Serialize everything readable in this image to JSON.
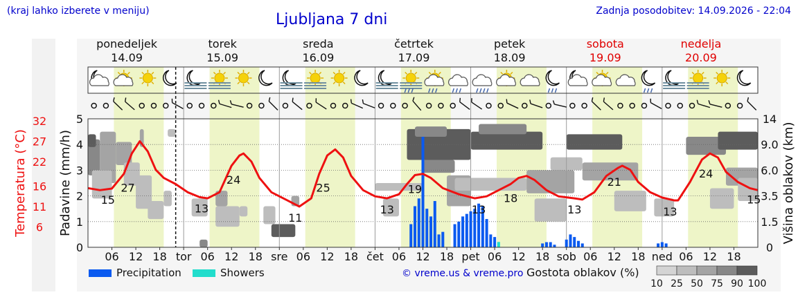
{
  "header": {
    "left_note": "(kraj lahko izberete v meniju)",
    "title": "Ljubljana 7 dni",
    "updated": "Zadnja posodobitev: 14.09.2026 - 22:04"
  },
  "days": [
    {
      "name": "ponedeljek",
      "date": "14.09",
      "weekend": false
    },
    {
      "name": "torek",
      "date": "15.09",
      "weekend": false
    },
    {
      "name": "sreda",
      "date": "16.09",
      "weekend": false
    },
    {
      "name": "četrtek",
      "date": "17.09",
      "weekend": false
    },
    {
      "name": "petek",
      "date": "18.09",
      "weekend": false
    },
    {
      "name": "sobota",
      "date": "19.09",
      "weekend": true
    },
    {
      "name": "nedelja",
      "date": "20.09",
      "weekend": true
    }
  ],
  "colors": {
    "temperature": "#ee1111",
    "precipitation": "#0a5af0",
    "showers": "#22ddcc",
    "daylight": "#eef5c8",
    "weekend": "#e00000",
    "link": "#0000cc",
    "cloud_levels": [
      "#d4d4d4",
      "#bdbdbd",
      "#a4a4a4",
      "#888888",
      "#5c5c5c"
    ]
  },
  "legend": {
    "precipitation": "Precipitation",
    "showers": "Showers",
    "copyright": "© vreme.us & vreme.pro",
    "cloud_density": "Gostota oblakov (%)",
    "cloud_density_ticks": [
      "10",
      "25",
      "50",
      "75",
      "90",
      "100"
    ]
  },
  "icons": [
    "moon-cloud",
    "sun-cloud",
    "sun",
    "moon",
    "moon-fog",
    "sun-fog",
    "sun",
    "moon",
    "moon-fog",
    "sun-fog",
    "sun",
    "moon",
    "moon-fog",
    "sun-fog-rain",
    "sun-cloud-rain",
    "rain",
    "rain-heavy",
    "sun-cloud",
    "cloud",
    "moon-rain",
    "moon-cloud",
    "sun-cloud",
    "cloud",
    "moon-rain",
    "moon-fog",
    "sun-fog",
    "sun",
    "moon"
  ],
  "chart_data": {
    "type": "line",
    "x_unit": "hours from 00:00 14.09",
    "x_range": [
      0,
      168
    ],
    "now_hour": 22,
    "x_ticks": [
      {
        "h": 6,
        "label": "06"
      },
      {
        "h": 12,
        "label": "12"
      },
      {
        "h": 18,
        "label": "18"
      },
      {
        "h": 24,
        "label": "tor"
      },
      {
        "h": 30,
        "label": "06"
      },
      {
        "h": 36,
        "label": "12"
      },
      {
        "h": 42,
        "label": "18"
      },
      {
        "h": 48,
        "label": "sre"
      },
      {
        "h": 54,
        "label": "06"
      },
      {
        "h": 60,
        "label": "12"
      },
      {
        "h": 66,
        "label": "18"
      },
      {
        "h": 72,
        "label": "čet"
      },
      {
        "h": 78,
        "label": "06"
      },
      {
        "h": 84,
        "label": "12"
      },
      {
        "h": 90,
        "label": "18"
      },
      {
        "h": 96,
        "label": "pet"
      },
      {
        "h": 102,
        "label": "06"
      },
      {
        "h": 108,
        "label": "12"
      },
      {
        "h": 114,
        "label": "18"
      },
      {
        "h": 120,
        "label": "sob"
      },
      {
        "h": 126,
        "label": "06"
      },
      {
        "h": 132,
        "label": "12"
      },
      {
        "h": 138,
        "label": "18"
      },
      {
        "h": 144,
        "label": "ned"
      },
      {
        "h": 150,
        "label": "06"
      },
      {
        "h": 156,
        "label": "12"
      },
      {
        "h": 162,
        "label": "18"
      }
    ],
    "daylight": [
      [
        6.5,
        19
      ],
      [
        30.5,
        43
      ],
      [
        54.5,
        67
      ],
      [
        78.5,
        91
      ],
      [
        102.5,
        115
      ],
      [
        126.5,
        139
      ],
      [
        150.5,
        163
      ]
    ],
    "temperature": {
      "ylabel": "Temperatura (°C)",
      "ticks": [
        6,
        11,
        16,
        22,
        27,
        32
      ],
      "points": [
        [
          0,
          15.5
        ],
        [
          3,
          15
        ],
        [
          6,
          15.4
        ],
        [
          9,
          19
        ],
        [
          11,
          24
        ],
        [
          13,
          27
        ],
        [
          15,
          24.5
        ],
        [
          17,
          20
        ],
        [
          19,
          18
        ],
        [
          22,
          16.5
        ],
        [
          25,
          14.5
        ],
        [
          28,
          13.3
        ],
        [
          30,
          13
        ],
        [
          33,
          14.5
        ],
        [
          36,
          21
        ],
        [
          38,
          23.5
        ],
        [
          39,
          24
        ],
        [
          41,
          22
        ],
        [
          43,
          18
        ],
        [
          46,
          14.5
        ],
        [
          50,
          12.5
        ],
        [
          53,
          11
        ],
        [
          56,
          13
        ],
        [
          58,
          19
        ],
        [
          60,
          23.5
        ],
        [
          62,
          25
        ],
        [
          64,
          23
        ],
        [
          66,
          18.5
        ],
        [
          69,
          15
        ],
        [
          72,
          13.5
        ],
        [
          75,
          13
        ],
        [
          78,
          14
        ],
        [
          80,
          16.5
        ],
        [
          82,
          18.7
        ],
        [
          84,
          19
        ],
        [
          86,
          18
        ],
        [
          89,
          15.5
        ],
        [
          93,
          14
        ],
        [
          97,
          13
        ],
        [
          100,
          13.5
        ],
        [
          103,
          15
        ],
        [
          106,
          16.5
        ],
        [
          108,
          18
        ],
        [
          110,
          18.5
        ],
        [
          112,
          17.5
        ],
        [
          115,
          15
        ],
        [
          118,
          13.5
        ],
        [
          122,
          13
        ],
        [
          124,
          12.7
        ],
        [
          127,
          14.5
        ],
        [
          130,
          18.5
        ],
        [
          133,
          20.5
        ],
        [
          134,
          21
        ],
        [
          136,
          20
        ],
        [
          138,
          17
        ],
        [
          141,
          14.5
        ],
        [
          144,
          13.2
        ],
        [
          147,
          12.5
        ],
        [
          148,
          12.5
        ],
        [
          151,
          17
        ],
        [
          154,
          22.5
        ],
        [
          156,
          24
        ],
        [
          158,
          23
        ],
        [
          160,
          19.5
        ],
        [
          163,
          17
        ],
        [
          166,
          15.5
        ],
        [
          168,
          15
        ]
      ],
      "labels": [
        {
          "h": 5,
          "v": "15"
        },
        {
          "h": 10,
          "v": "27"
        },
        {
          "h": 28.5,
          "v": "13"
        },
        {
          "h": 36.5,
          "v": "24"
        },
        {
          "h": 52,
          "v": "11"
        },
        {
          "h": 59,
          "v": "25"
        },
        {
          "h": 75,
          "v": "13"
        },
        {
          "h": 82,
          "v": "19"
        },
        {
          "h": 98,
          "v": "13"
        },
        {
          "h": 106,
          "v": "18"
        },
        {
          "h": 122,
          "v": "13"
        },
        {
          "h": 132,
          "v": "21"
        },
        {
          "h": 146,
          "v": "13"
        },
        {
          "h": 155,
          "v": "24"
        },
        {
          "h": 167,
          "v": "15"
        }
      ]
    },
    "precipitation": {
      "ylabel": "Padavine (mm/h)",
      "ticks": [
        0,
        1,
        2,
        3,
        4,
        5
      ],
      "bars": [
        [
          81,
          0.9
        ],
        [
          82,
          1.6
        ],
        [
          83,
          1.9
        ],
        [
          84,
          4.3
        ],
        [
          85,
          1.5
        ],
        [
          86,
          1.2
        ],
        [
          87,
          1.8
        ],
        [
          88,
          0.5
        ],
        [
          89,
          0.6
        ],
        [
          92,
          0.9
        ],
        [
          93,
          1.0
        ],
        [
          94,
          1.2
        ],
        [
          95,
          1.3
        ],
        [
          96,
          1.4
        ],
        [
          97,
          1.5
        ],
        [
          98,
          1.7
        ],
        [
          99,
          1.6
        ],
        [
          100,
          1.1
        ],
        [
          101,
          0.5
        ],
        [
          102,
          0.4
        ],
        [
          114,
          0.15
        ],
        [
          115,
          0.2
        ],
        [
          116,
          0.2
        ],
        [
          117,
          0.1
        ],
        [
          120,
          0.3
        ],
        [
          121,
          0.5
        ],
        [
          122,
          0.4
        ],
        [
          123,
          0.25
        ],
        [
          124,
          0.15
        ],
        [
          143,
          0.15
        ],
        [
          144,
          0.2
        ],
        [
          145,
          0.15
        ]
      ],
      "showers": [
        [
          103,
          0.1
        ]
      ]
    },
    "clouds": {
      "ylabel": "Višina oblakov (km)",
      "ticks": [
        "0",
        "1.5",
        "3.5",
        "6.0",
        "9.0",
        "14"
      ],
      "blocks": [
        [
          0,
          3,
          2.8,
          4.2,
          3
        ],
        [
          0,
          2,
          3.9,
          4.4,
          4
        ],
        [
          3,
          7,
          2.5,
          4.5,
          2
        ],
        [
          1,
          6,
          1.9,
          3.0,
          1
        ],
        [
          7,
          11,
          3.2,
          4.1,
          2
        ],
        [
          9,
          13,
          2.4,
          3.3,
          1
        ],
        [
          12,
          16,
          1.5,
          2.8,
          1
        ],
        [
          13,
          14,
          3.9,
          4.6,
          2
        ],
        [
          15,
          19,
          1.1,
          1.8,
          1
        ],
        [
          19,
          21,
          1.6,
          2.2,
          1
        ],
        [
          20,
          22,
          4.3,
          4.6,
          1
        ],
        [
          26,
          30,
          1.2,
          1.9,
          1
        ],
        [
          28,
          30,
          0,
          0.3,
          3
        ],
        [
          32,
          38,
          0.8,
          1.6,
          1
        ],
        [
          32,
          35,
          1.6,
          2.2,
          2
        ],
        [
          38,
          40,
          1.2,
          1.6,
          1
        ],
        [
          46,
          52,
          0.4,
          0.9,
          4
        ],
        [
          44,
          47,
          0.9,
          1.6,
          1
        ],
        [
          51,
          53,
          1.6,
          2.0,
          2
        ],
        [
          72,
          84,
          2.2,
          2.5,
          1
        ],
        [
          74,
          78,
          1.2,
          1.9,
          1
        ],
        [
          80,
          96,
          3.4,
          4.6,
          4
        ],
        [
          82,
          90,
          4.3,
          4.7,
          3
        ],
        [
          84,
          92,
          2.9,
          3.4,
          3
        ],
        [
          90,
          96,
          1.6,
          2.8,
          2
        ],
        [
          92,
          110,
          2.2,
          2.7,
          1
        ],
        [
          96,
          114,
          3.8,
          4.5,
          4
        ],
        [
          98,
          110,
          4.4,
          4.8,
          3
        ],
        [
          110,
          122,
          2.1,
          3.0,
          2
        ],
        [
          112,
          120,
          1.0,
          1.9,
          1
        ],
        [
          116,
          124,
          3.0,
          3.5,
          1
        ],
        [
          120,
          134,
          3.8,
          4.4,
          4
        ],
        [
          124,
          138,
          2.6,
          3.3,
          2
        ],
        [
          132,
          140,
          1.4,
          2.2,
          1
        ],
        [
          142,
          147,
          1.2,
          1.9,
          1
        ],
        [
          150,
          160,
          3.6,
          4.3,
          3
        ],
        [
          158,
          168,
          3.8,
          4.5,
          4
        ],
        [
          160,
          168,
          2.4,
          3.1,
          2
        ],
        [
          156,
          162,
          1.5,
          2.3,
          1
        ],
        [
          163,
          168,
          1.8,
          2.7,
          1
        ]
      ]
    }
  }
}
